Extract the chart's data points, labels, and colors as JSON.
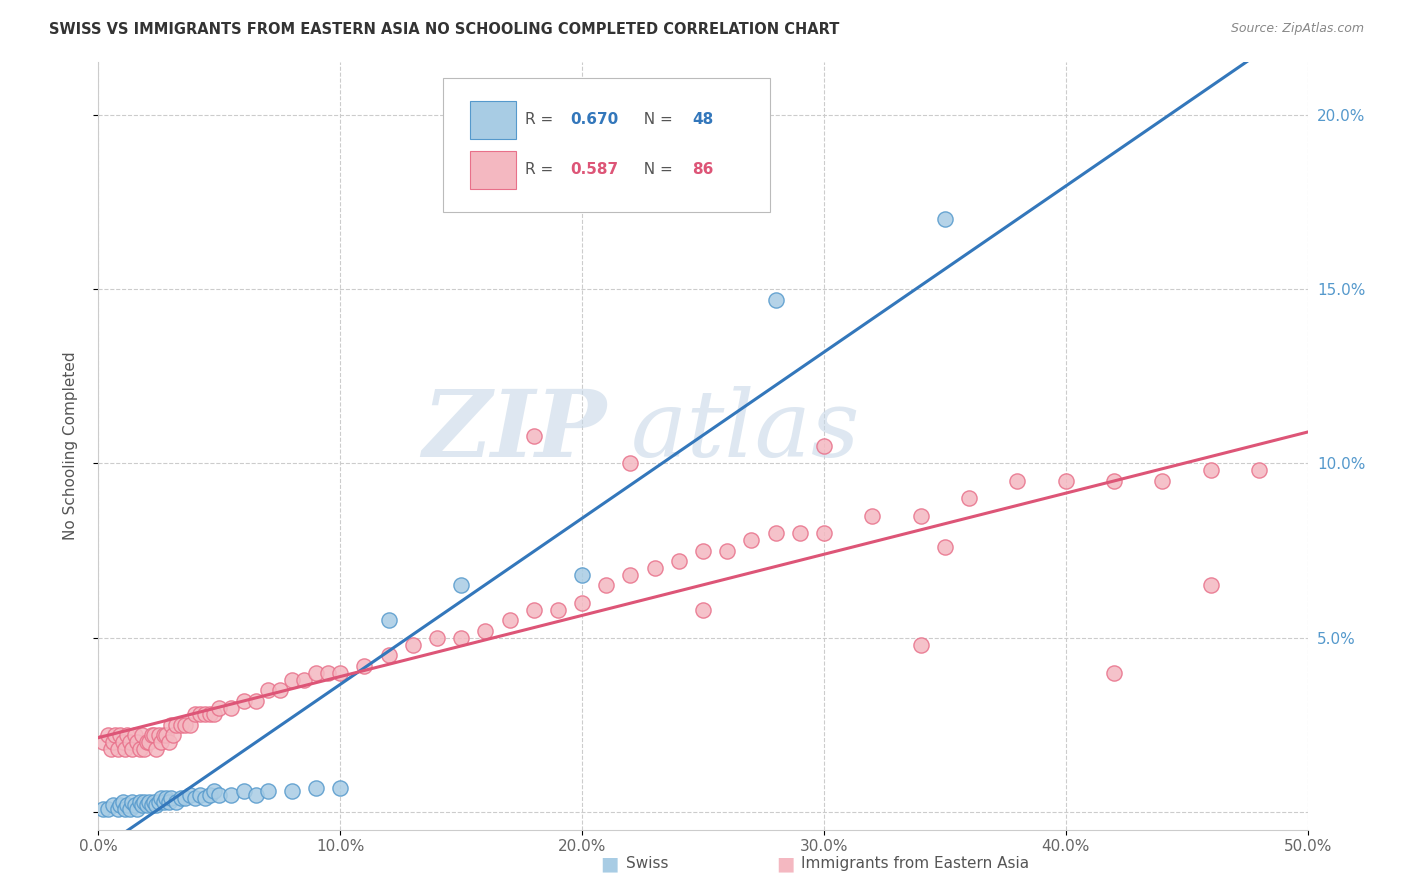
{
  "title": "SWISS VS IMMIGRANTS FROM EASTERN ASIA NO SCHOOLING COMPLETED CORRELATION CHART",
  "source": "Source: ZipAtlas.com",
  "ylabel": "No Schooling Completed",
  "xlim": [
    0.0,
    0.5
  ],
  "ylim": [
    -0.005,
    0.215
  ],
  "xticks": [
    0.0,
    0.1,
    0.2,
    0.3,
    0.4,
    0.5
  ],
  "yticks": [
    0.0,
    0.05,
    0.1,
    0.15,
    0.2
  ],
  "xticklabels": [
    "0.0%",
    "10.0%",
    "20.0%",
    "30.0%",
    "40.0%",
    "50.0%"
  ],
  "right_yticklabels": [
    "",
    "5.0%",
    "10.0%",
    "15.0%",
    "20.0%"
  ],
  "swiss_R": 0.67,
  "swiss_N": 48,
  "immig_R": 0.587,
  "immig_N": 86,
  "swiss_color": "#a8cce4",
  "immig_color": "#f4b8c1",
  "swiss_edge_color": "#5599cc",
  "immig_edge_color": "#e8708a",
  "swiss_line_color": "#3377bb",
  "immig_line_color": "#dd5577",
  "watermark_zip": "ZIP",
  "watermark_atlas": "atlas",
  "right_label_color": "#5599cc",
  "swiss_x": [
    0.002,
    0.004,
    0.006,
    0.008,
    0.009,
    0.01,
    0.011,
    0.012,
    0.013,
    0.014,
    0.015,
    0.016,
    0.017,
    0.018,
    0.019,
    0.02,
    0.021,
    0.022,
    0.023,
    0.024,
    0.025,
    0.026,
    0.027,
    0.028,
    0.029,
    0.03,
    0.032,
    0.034,
    0.036,
    0.038,
    0.04,
    0.042,
    0.044,
    0.046,
    0.048,
    0.05,
    0.055,
    0.06,
    0.065,
    0.07,
    0.08,
    0.09,
    0.1,
    0.12,
    0.15,
    0.2,
    0.28,
    0.35
  ],
  "swiss_y": [
    0.001,
    0.001,
    0.002,
    0.001,
    0.002,
    0.003,
    0.001,
    0.002,
    0.001,
    0.003,
    0.002,
    0.001,
    0.003,
    0.002,
    0.003,
    0.002,
    0.003,
    0.002,
    0.003,
    0.002,
    0.003,
    0.004,
    0.003,
    0.004,
    0.003,
    0.004,
    0.003,
    0.004,
    0.004,
    0.005,
    0.004,
    0.005,
    0.004,
    0.005,
    0.006,
    0.005,
    0.005,
    0.006,
    0.005,
    0.006,
    0.006,
    0.007,
    0.007,
    0.055,
    0.065,
    0.068,
    0.147,
    0.17
  ],
  "immig_x": [
    0.002,
    0.004,
    0.005,
    0.006,
    0.007,
    0.008,
    0.009,
    0.01,
    0.011,
    0.012,
    0.013,
    0.014,
    0.015,
    0.016,
    0.017,
    0.018,
    0.019,
    0.02,
    0.021,
    0.022,
    0.023,
    0.024,
    0.025,
    0.026,
    0.027,
    0.028,
    0.029,
    0.03,
    0.031,
    0.032,
    0.034,
    0.036,
    0.038,
    0.04,
    0.042,
    0.044,
    0.046,
    0.048,
    0.05,
    0.055,
    0.06,
    0.065,
    0.07,
    0.075,
    0.08,
    0.085,
    0.09,
    0.095,
    0.1,
    0.11,
    0.12,
    0.13,
    0.14,
    0.15,
    0.16,
    0.17,
    0.18,
    0.19,
    0.2,
    0.21,
    0.22,
    0.23,
    0.24,
    0.25,
    0.26,
    0.27,
    0.28,
    0.29,
    0.3,
    0.32,
    0.34,
    0.36,
    0.38,
    0.4,
    0.42,
    0.44,
    0.46,
    0.48,
    0.22,
    0.3,
    0.18,
    0.25,
    0.34,
    0.42,
    0.46,
    0.35
  ],
  "immig_y": [
    0.02,
    0.022,
    0.018,
    0.02,
    0.022,
    0.018,
    0.022,
    0.02,
    0.018,
    0.022,
    0.02,
    0.018,
    0.022,
    0.02,
    0.018,
    0.022,
    0.018,
    0.02,
    0.02,
    0.022,
    0.022,
    0.018,
    0.022,
    0.02,
    0.022,
    0.022,
    0.02,
    0.025,
    0.022,
    0.025,
    0.025,
    0.025,
    0.025,
    0.028,
    0.028,
    0.028,
    0.028,
    0.028,
    0.03,
    0.03,
    0.032,
    0.032,
    0.035,
    0.035,
    0.038,
    0.038,
    0.04,
    0.04,
    0.04,
    0.042,
    0.045,
    0.048,
    0.05,
    0.05,
    0.052,
    0.055,
    0.058,
    0.058,
    0.06,
    0.065,
    0.068,
    0.07,
    0.072,
    0.075,
    0.075,
    0.078,
    0.08,
    0.08,
    0.08,
    0.085,
    0.085,
    0.09,
    0.095,
    0.095,
    0.095,
    0.095,
    0.098,
    0.098,
    0.1,
    0.105,
    0.108,
    0.058,
    0.048,
    0.04,
    0.065,
    0.076
  ]
}
